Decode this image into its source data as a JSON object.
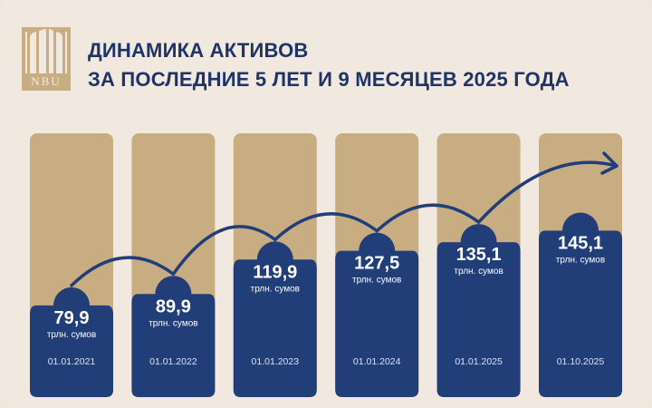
{
  "brand": {
    "logo_text": "NBU",
    "colors": {
      "navy": "#213e78",
      "gold": "#c9ad82",
      "background": "#f1e9df"
    }
  },
  "header": {
    "title_line1": "ДИНАМИКА АКТИВОВ",
    "title_line2": "ЗА ПОСЛЕДНИЕ 5 ЛЕТ И 9 МЕСЯЦЕВ 2025 ГОДА"
  },
  "chart_data": {
    "type": "bar",
    "categories": [
      "01.01.2021",
      "01.01.2022",
      "01.01.2023",
      "01.01.2024",
      "01.01.2025",
      "01.10.2025"
    ],
    "values": [
      79.9,
      89.9,
      119.9,
      127.5,
      135.1,
      145.1
    ],
    "value_labels": [
      "79,9",
      "89,9",
      "119,9",
      "127,5",
      "135,1",
      "145,1"
    ],
    "unit": "трлн. сумов",
    "title": "ДИНАМИКА АКТИВОВ",
    "xlabel": "",
    "ylabel": "",
    "ylim": [
      0,
      230
    ],
    "trend_arrow": true,
    "grid": false,
    "legend": "none"
  }
}
